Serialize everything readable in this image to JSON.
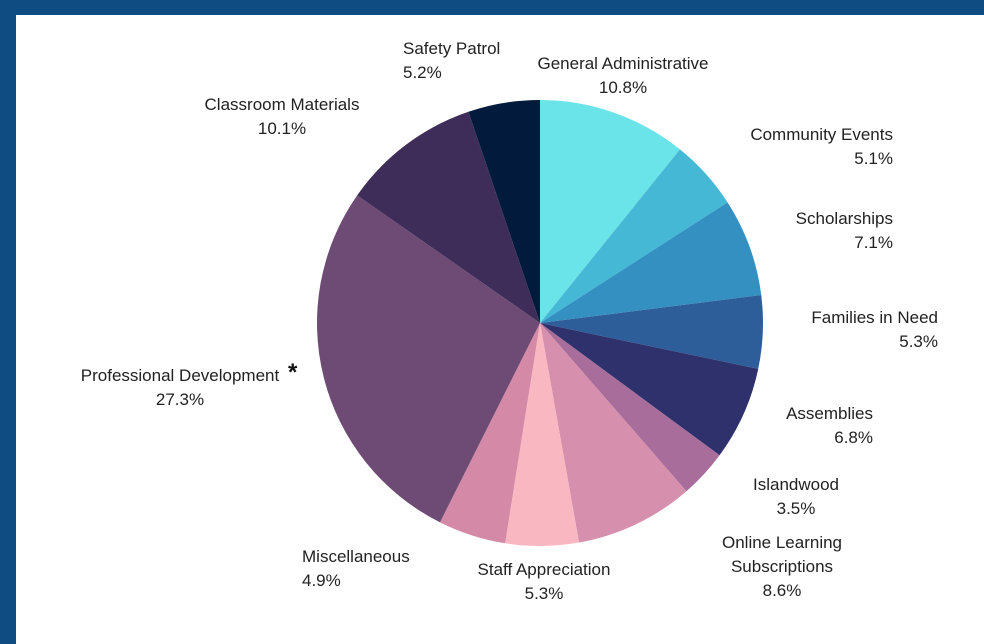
{
  "chart_data": {
    "type": "pie",
    "title": "",
    "start_angle_deg": 0,
    "direction": "clockwise",
    "slices": [
      {
        "label": "General Administrative",
        "value_label": "10.8%",
        "value": 10.8,
        "color": "#6ae3e9"
      },
      {
        "label": "Community Events",
        "value_label": "5.1%",
        "value": 5.1,
        "color": "#45b8d6"
      },
      {
        "label": "Scholarships",
        "value_label": "7.1%",
        "value": 7.1,
        "color": "#3590c2"
      },
      {
        "label": "Families in Need",
        "value_label": "5.3%",
        "value": 5.3,
        "color": "#2e5e9a"
      },
      {
        "label": "Assemblies",
        "value_label": "6.8%",
        "value": 6.8,
        "color": "#2f316c"
      },
      {
        "label": "Islandwood",
        "value_label": "3.5%",
        "value": 3.5,
        "color": "#a86d9a"
      },
      {
        "label": "Online Learning Subscriptions",
        "label_lines": [
          "Online Learning",
          "Subscriptions"
        ],
        "value_label": "8.6%",
        "value": 8.6,
        "color": "#d68fad"
      },
      {
        "label": "Staff Appreciation",
        "value_label": "5.3%",
        "value": 5.3,
        "color": "#f9b8c1"
      },
      {
        "label": "Miscellaneous",
        "value_label": "4.9%",
        "value": 4.9,
        "color": "#d48aa6"
      },
      {
        "label": "Professional Development",
        "value_label": "27.3%",
        "value": 27.3,
        "color": "#6e4b74",
        "marker": "*"
      },
      {
        "label": "Classroom Materials",
        "value_label": "10.1%",
        "value": 10.1,
        "color": "#3e2d58"
      },
      {
        "label": "Safety Patrol",
        "value_label": "5.2%",
        "value": 5.2,
        "color": "#021a3b"
      }
    ]
  }
}
